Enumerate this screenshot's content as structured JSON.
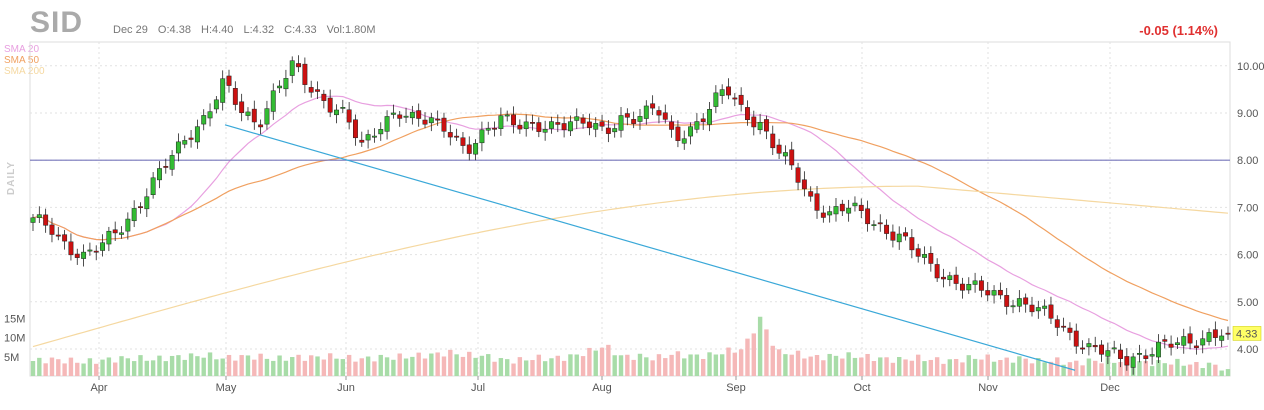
{
  "header": {
    "ticker": "SID",
    "date": "Dec 29",
    "open": "O:4.38",
    "high": "H:4.40",
    "low": "L:4.32",
    "close": "C:4.33",
    "volume": "Vol:1.80M",
    "change": "-0.05 (1.14%)"
  },
  "legend": [
    {
      "name": "SMA 20",
      "color": "#e8a0e0"
    },
    {
      "name": "SMA 50",
      "color": "#f0a060"
    },
    {
      "name": "SMA 200",
      "color": "#f5d8a0"
    }
  ],
  "timeframe_label": "DAILY",
  "last_price_label": "4.33",
  "chart_data": {
    "type": "candlestick",
    "price_axis": {
      "range": [
        3.5,
        10.4
      ],
      "ticks": [
        "10.00",
        "9.00",
        "8.00",
        "7.00",
        "6.00",
        "5.00",
        "4.00"
      ]
    },
    "volume_axis": {
      "ticks": [
        "15M",
        "10M",
        "5M"
      ]
    },
    "x_ticks": [
      "Apr",
      "May",
      "Jun",
      "Jul",
      "Aug",
      "Sep",
      "Oct",
      "Nov",
      "Dec"
    ],
    "horizontal_line": 8.0,
    "trendline": [
      [
        "2023-05-01",
        8.75
      ],
      [
        "2023-11-20",
        3.55
      ]
    ],
    "last_price": 4.33,
    "colors": {
      "up": "#33bb33",
      "down": "#cc1111",
      "volume_up": "#a8dca8",
      "volume_down": "#f5b8b8",
      "hline": "#7777bb",
      "trendline": "#3aa8d8"
    },
    "closes_sampled": [
      6.7,
      6.6,
      6.2,
      5.9,
      6.2,
      6.6,
      7.0,
      7.5,
      8.1,
      8.6,
      8.9,
      9.6,
      9.1,
      8.8,
      9.4,
      10.0,
      9.6,
      9.2,
      8.9,
      8.3,
      8.8,
      9.0,
      8.8,
      8.9,
      8.7,
      8.1,
      8.5,
      9.0,
      8.8,
      8.6,
      8.7,
      8.9,
      8.8,
      8.5,
      8.9,
      9.0,
      9.1,
      8.4,
      8.7,
      9.1,
      9.5,
      9.0,
      8.8,
      8.2,
      7.7,
      7.1,
      6.9,
      7.0,
      6.8,
      6.6,
      6.4,
      6.0,
      5.7,
      5.5,
      5.3,
      5.2,
      5.1,
      5.0,
      4.8,
      4.6,
      4.3,
      4.0,
      3.9,
      3.8,
      3.9,
      4.0,
      4.1,
      4.2,
      4.3,
      4.33
    ],
    "volume_sampled": [
      3.9,
      4.3,
      4.0,
      3.6,
      4.1,
      4.5,
      4.6,
      4.3,
      4.9,
      5.1,
      5.4,
      4.6,
      5.0,
      5.1,
      4.3,
      4.9,
      4.8,
      5.1,
      4.7,
      4.4,
      4.8,
      4.9,
      5.2,
      5.5,
      6.1,
      5.4,
      5.3,
      4.2,
      4.0,
      4.7,
      4.5,
      5.0,
      6.2,
      7.9,
      5.0,
      5.1,
      4.6,
      5.8,
      5.2,
      5.3,
      6.4,
      7.0,
      15.0,
      6.1,
      5.9,
      4.8,
      5.1,
      5.3,
      5.0,
      4.5,
      4.2,
      4.7,
      4.2,
      3.9,
      4.6,
      4.8,
      4.0,
      4.6,
      3.8,
      4.1,
      3.3,
      3.9,
      4.0,
      3.8,
      3.5,
      3.4,
      3.6,
      2.9,
      3.0,
      1.8
    ]
  }
}
